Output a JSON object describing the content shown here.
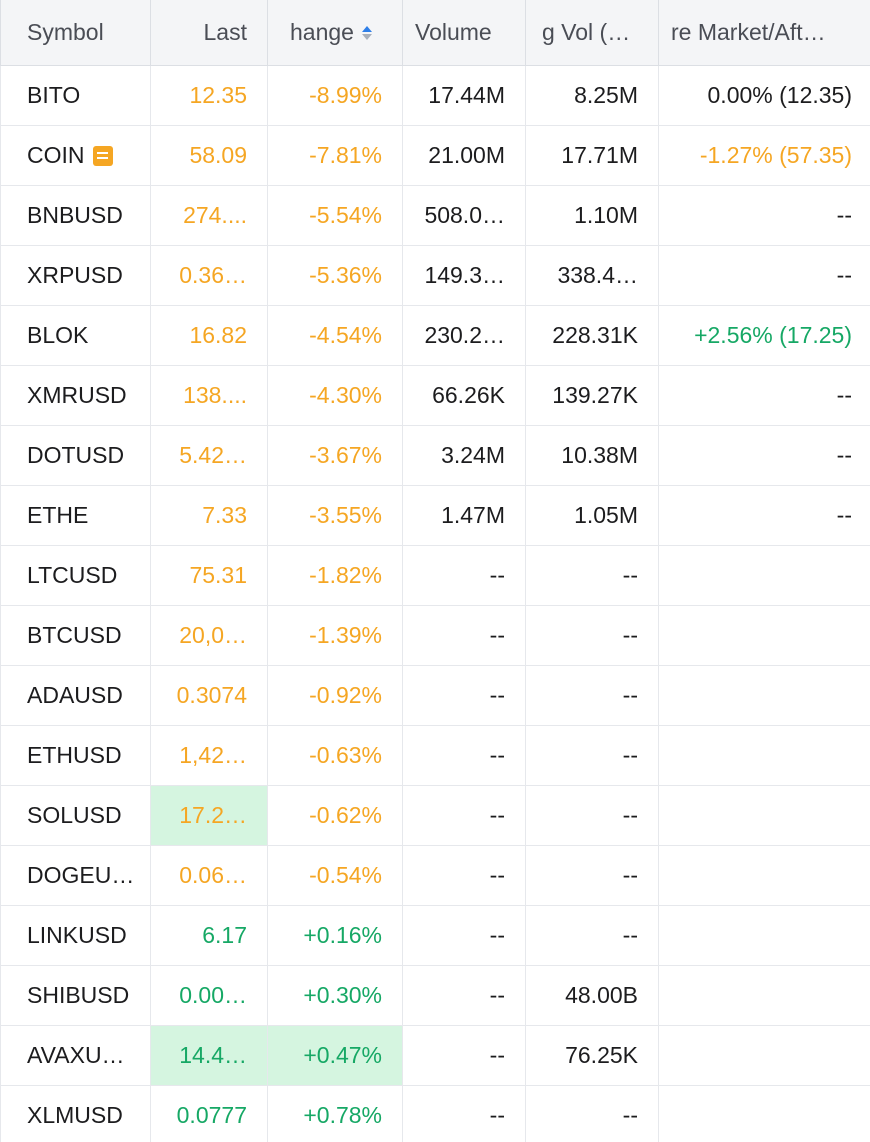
{
  "header": {
    "symbol": "Symbol",
    "last": "Last",
    "change": "hange",
    "volume": "Volume",
    "avg_vol": "g Vol (…",
    "pre_market": "re Market/Aft…"
  },
  "colors": {
    "negative": "#f5a623",
    "positive": "#16a865",
    "highlight_positive": "#d5f5e0",
    "sort_active": "#2f7fe8"
  },
  "rows": [
    {
      "symbol": "BITO",
      "last": "12.35",
      "change": "-8.99%",
      "volume": "17.44M",
      "avg_vol": "8.25M",
      "pre_market": "0.00% (12.35)",
      "last_dir": "neg",
      "change_dir": "neg",
      "pre_dir": "flat",
      "news": false,
      "hl_last": false,
      "hl_change": false
    },
    {
      "symbol": "COIN",
      "last": "58.09",
      "change": "-7.81%",
      "volume": "21.00M",
      "avg_vol": "17.71M",
      "pre_market": "-1.27% (57.35)",
      "last_dir": "neg",
      "change_dir": "neg",
      "pre_dir": "neg",
      "news": true,
      "hl_last": false,
      "hl_change": false
    },
    {
      "symbol": "BNBUSD",
      "last": "274....",
      "change": "-5.54%",
      "volume": "508.0…",
      "avg_vol": "1.10M",
      "pre_market": "--",
      "last_dir": "neg",
      "change_dir": "neg",
      "pre_dir": "flat",
      "news": false,
      "hl_last": false,
      "hl_change": false
    },
    {
      "symbol": "XRPUSD",
      "last": "0.36…",
      "change": "-5.36%",
      "volume": "149.3…",
      "avg_vol": "338.4…",
      "pre_market": "--",
      "last_dir": "neg",
      "change_dir": "neg",
      "pre_dir": "flat",
      "news": false,
      "hl_last": false,
      "hl_change": false
    },
    {
      "symbol": "BLOK",
      "last": "16.82",
      "change": "-4.54%",
      "volume": "230.2…",
      "avg_vol": "228.31K",
      "pre_market": "+2.56% (17.25)",
      "last_dir": "neg",
      "change_dir": "neg",
      "pre_dir": "pos",
      "news": false,
      "hl_last": false,
      "hl_change": false
    },
    {
      "symbol": "XMRUSD",
      "last": "138....",
      "change": "-4.30%",
      "volume": "66.26K",
      "avg_vol": "139.27K",
      "pre_market": "--",
      "last_dir": "neg",
      "change_dir": "neg",
      "pre_dir": "flat",
      "news": false,
      "hl_last": false,
      "hl_change": false
    },
    {
      "symbol": "DOTUSD",
      "last": "5.42…",
      "change": "-3.67%",
      "volume": "3.24M",
      "avg_vol": "10.38M",
      "pre_market": "--",
      "last_dir": "neg",
      "change_dir": "neg",
      "pre_dir": "flat",
      "news": false,
      "hl_last": false,
      "hl_change": false
    },
    {
      "symbol": "ETHE",
      "last": "7.33",
      "change": "-3.55%",
      "volume": "1.47M",
      "avg_vol": "1.05M",
      "pre_market": "--",
      "last_dir": "neg",
      "change_dir": "neg",
      "pre_dir": "flat",
      "news": false,
      "hl_last": false,
      "hl_change": false
    },
    {
      "symbol": "LTCUSD",
      "last": "75.31",
      "change": "-1.82%",
      "volume": "--",
      "avg_vol": "--",
      "pre_market": "",
      "last_dir": "neg",
      "change_dir": "neg",
      "pre_dir": "flat",
      "news": false,
      "hl_last": false,
      "hl_change": false
    },
    {
      "symbol": "BTCUSD",
      "last": "20,0…",
      "change": "-1.39%",
      "volume": "--",
      "avg_vol": "--",
      "pre_market": "",
      "last_dir": "neg",
      "change_dir": "neg",
      "pre_dir": "flat",
      "news": false,
      "hl_last": false,
      "hl_change": false
    },
    {
      "symbol": "ADAUSD",
      "last": "0.3074",
      "change": "-0.92%",
      "volume": "--",
      "avg_vol": "--",
      "pre_market": "",
      "last_dir": "neg",
      "change_dir": "neg",
      "pre_dir": "flat",
      "news": false,
      "hl_last": false,
      "hl_change": false
    },
    {
      "symbol": "ETHUSD",
      "last": "1,42…",
      "change": "-0.63%",
      "volume": "--",
      "avg_vol": "--",
      "pre_market": "",
      "last_dir": "neg",
      "change_dir": "neg",
      "pre_dir": "flat",
      "news": false,
      "hl_last": false,
      "hl_change": false
    },
    {
      "symbol": "SOLUSD",
      "last": "17.2…",
      "change": "-0.62%",
      "volume": "--",
      "avg_vol": "--",
      "pre_market": "",
      "last_dir": "neg",
      "change_dir": "neg",
      "pre_dir": "flat",
      "news": false,
      "hl_last": true,
      "hl_change": false
    },
    {
      "symbol": "DOGEU…",
      "last": "0.06…",
      "change": "-0.54%",
      "volume": "--",
      "avg_vol": "--",
      "pre_market": "",
      "last_dir": "neg",
      "change_dir": "neg",
      "pre_dir": "flat",
      "news": false,
      "hl_last": false,
      "hl_change": false
    },
    {
      "symbol": "LINKUSD",
      "last": "6.17",
      "change": "+0.16%",
      "volume": "--",
      "avg_vol": "--",
      "pre_market": "",
      "last_dir": "pos",
      "change_dir": "pos",
      "pre_dir": "flat",
      "news": false,
      "hl_last": false,
      "hl_change": false
    },
    {
      "symbol": "SHIBUSD",
      "last": "0.00…",
      "change": "+0.30%",
      "volume": "--",
      "avg_vol": "48.00B",
      "pre_market": "",
      "last_dir": "pos",
      "change_dir": "pos",
      "pre_dir": "flat",
      "news": false,
      "hl_last": false,
      "hl_change": false
    },
    {
      "symbol": "AVAXU…",
      "last": "14.4…",
      "change": "+0.47%",
      "volume": "--",
      "avg_vol": "76.25K",
      "pre_market": "",
      "last_dir": "pos",
      "change_dir": "pos",
      "pre_dir": "flat",
      "news": false,
      "hl_last": true,
      "hl_change": true
    },
    {
      "symbol": "XLMUSD",
      "last": "0.0777",
      "change": "+0.78%",
      "volume": "--",
      "avg_vol": "--",
      "pre_market": "",
      "last_dir": "pos",
      "change_dir": "pos",
      "pre_dir": "flat",
      "news": false,
      "hl_last": false,
      "hl_change": false
    }
  ]
}
